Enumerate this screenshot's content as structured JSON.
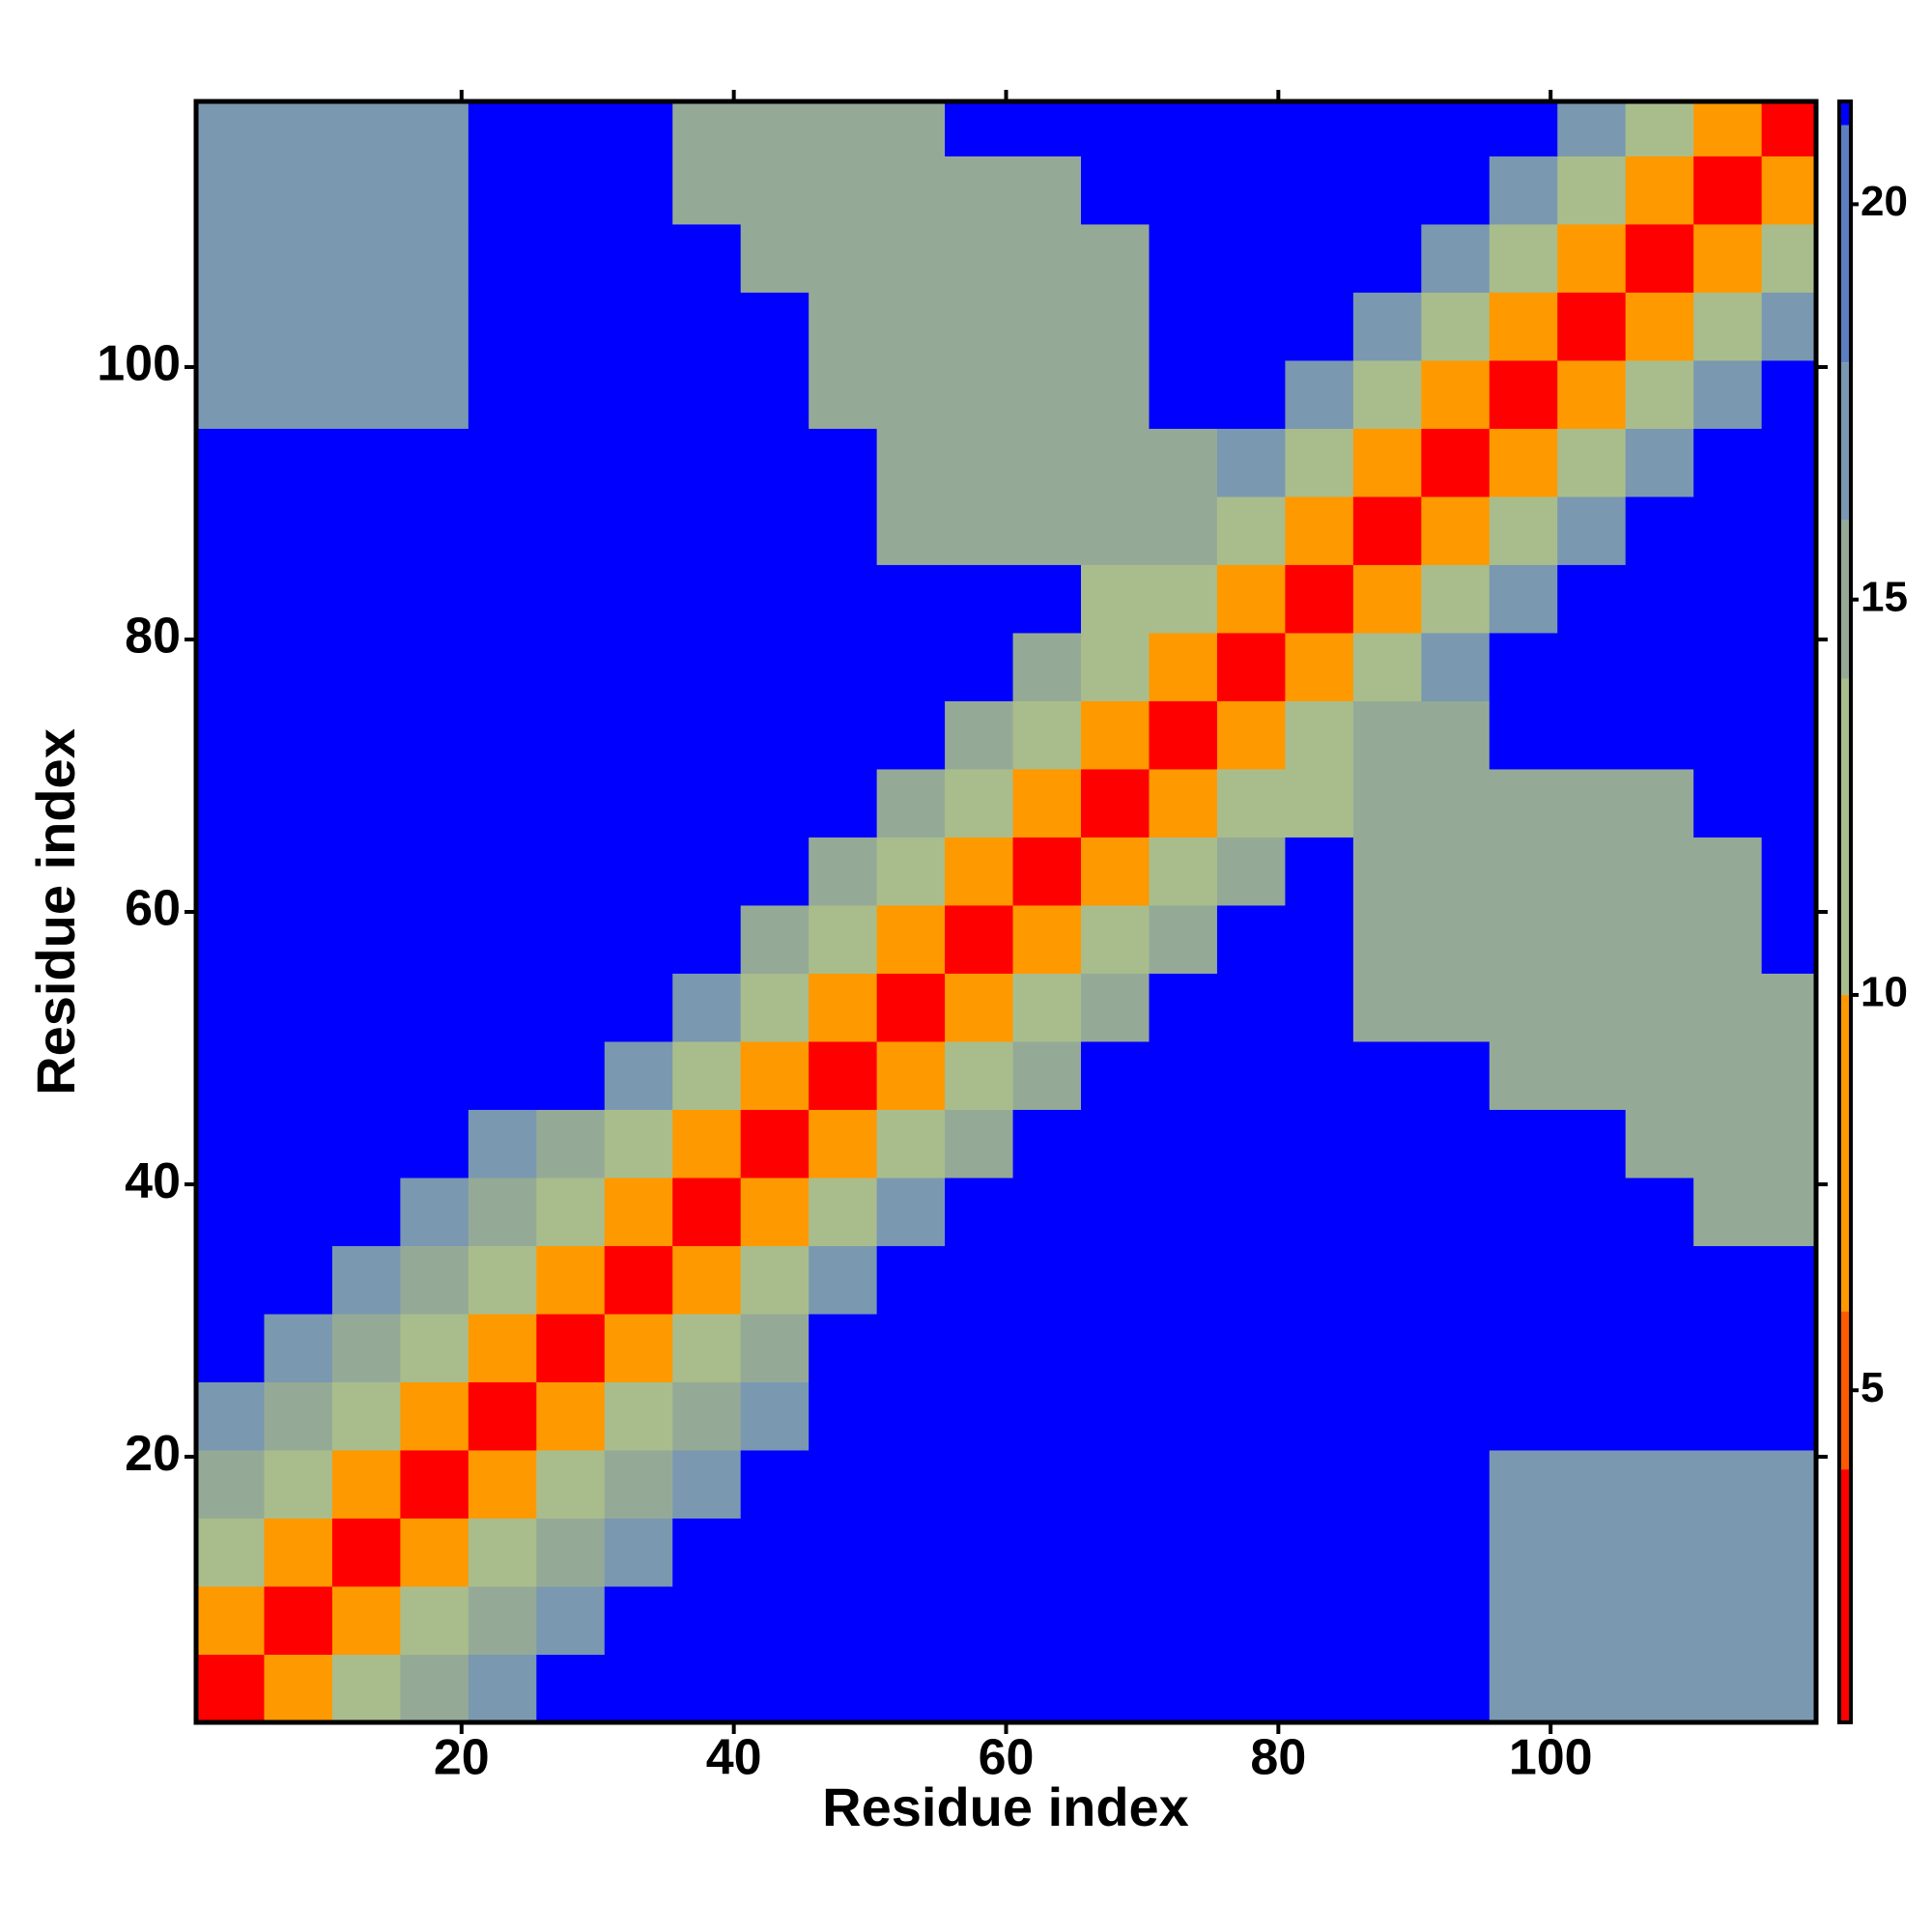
{
  "chart_data": {
    "type": "heatmap",
    "xlabel": "Residue index",
    "ylabel": "Residue index",
    "x": [
      3,
      8,
      13,
      18,
      23,
      28,
      33,
      38,
      43,
      48,
      53,
      58,
      63,
      68,
      73,
      78,
      83,
      88,
      93,
      98,
      103,
      108,
      113,
      118
    ],
    "y": [
      3,
      8,
      13,
      18,
      23,
      28,
      33,
      38,
      43,
      48,
      53,
      58,
      63,
      68,
      73,
      78,
      83,
      88,
      93,
      98,
      103,
      108,
      113,
      118
    ],
    "values": [
      [
        3,
        9,
        13,
        15,
        17,
        21,
        21,
        21,
        21,
        21,
        21,
        21,
        21,
        21,
        21,
        21,
        21,
        21,
        21,
        17,
        17,
        17,
        17,
        17
      ],
      [
        9,
        3,
        9,
        13,
        15,
        17,
        21,
        21,
        21,
        21,
        21,
        21,
        21,
        21,
        21,
        21,
        21,
        21,
        21,
        17,
        17,
        17,
        17,
        17
      ],
      [
        13,
        9,
        3,
        9,
        13,
        15,
        17,
        21,
        21,
        21,
        21,
        21,
        21,
        21,
        21,
        21,
        21,
        21,
        21,
        17,
        17,
        17,
        17,
        17
      ],
      [
        15,
        13,
        9,
        3,
        9,
        13,
        15,
        17,
        21,
        21,
        21,
        21,
        21,
        21,
        21,
        21,
        21,
        21,
        21,
        17,
        17,
        17,
        17,
        17
      ],
      [
        17,
        15,
        13,
        9,
        3,
        9,
        13,
        15,
        17,
        21,
        21,
        21,
        21,
        21,
        21,
        21,
        21,
        21,
        21,
        21,
        21,
        21,
        21,
        21
      ],
      [
        21,
        17,
        15,
        13,
        9,
        3,
        9,
        13,
        15,
        21,
        21,
        21,
        21,
        21,
        21,
        21,
        21,
        21,
        21,
        21,
        21,
        21,
        21,
        21
      ],
      [
        21,
        21,
        17,
        15,
        13,
        9,
        3,
        9,
        13,
        17,
        21,
        21,
        21,
        21,
        21,
        21,
        21,
        21,
        21,
        21,
        21,
        21,
        21,
        21
      ],
      [
        21,
        21,
        21,
        17,
        15,
        13,
        9,
        3,
        9,
        13,
        17,
        21,
        21,
        21,
        21,
        21,
        21,
        21,
        21,
        21,
        21,
        21,
        15,
        15
      ],
      [
        21,
        21,
        21,
        21,
        17,
        15,
        13,
        9,
        3,
        9,
        13,
        15,
        21,
        21,
        21,
        21,
        21,
        21,
        21,
        21,
        21,
        15,
        15,
        15
      ],
      [
        21,
        21,
        21,
        21,
        21,
        21,
        17,
        13,
        9,
        3,
        9,
        13,
        15,
        21,
        21,
        21,
        21,
        21,
        21,
        15,
        15,
        15,
        15,
        15
      ],
      [
        21,
        21,
        21,
        21,
        21,
        21,
        21,
        17,
        13,
        9,
        3,
        9,
        13,
        15,
        21,
        21,
        21,
        15,
        15,
        15,
        15,
        15,
        15,
        15
      ],
      [
        21,
        21,
        21,
        21,
        21,
        21,
        21,
        21,
        15,
        13,
        9,
        3,
        9,
        13,
        15,
        21,
        21,
        15,
        15,
        15,
        15,
        15,
        15,
        21
      ],
      [
        21,
        21,
        21,
        21,
        21,
        21,
        21,
        21,
        21,
        15,
        13,
        9,
        3,
        9,
        13,
        15,
        21,
        15,
        15,
        15,
        15,
        15,
        15,
        21
      ],
      [
        21,
        21,
        21,
        21,
        21,
        21,
        21,
        21,
        21,
        21,
        15,
        13,
        9,
        3,
        9,
        13,
        13,
        15,
        15,
        15,
        15,
        15,
        21,
        21
      ],
      [
        21,
        21,
        21,
        21,
        21,
        21,
        21,
        21,
        21,
        21,
        21,
        15,
        13,
        9,
        3,
        9,
        13,
        15,
        15,
        21,
        21,
        21,
        21,
        21
      ],
      [
        21,
        21,
        21,
        21,
        21,
        21,
        21,
        21,
        21,
        21,
        21,
        21,
        15,
        13,
        9,
        3,
        9,
        13,
        17,
        21,
        21,
        21,
        21,
        21
      ],
      [
        21,
        21,
        21,
        21,
        21,
        21,
        21,
        21,
        21,
        21,
        21,
        21,
        21,
        13,
        13,
        9,
        3,
        9,
        13,
        17,
        21,
        21,
        21,
        21
      ],
      [
        21,
        21,
        21,
        21,
        21,
        21,
        21,
        21,
        21,
        21,
        15,
        15,
        15,
        15,
        15,
        13,
        9,
        3,
        9,
        13,
        17,
        21,
        21,
        21
      ],
      [
        21,
        21,
        21,
        21,
        21,
        21,
        21,
        21,
        21,
        21,
        15,
        15,
        15,
        15,
        15,
        17,
        13,
        9,
        3,
        9,
        13,
        17,
        21,
        21
      ],
      [
        17,
        17,
        17,
        17,
        21,
        21,
        21,
        21,
        21,
        15,
        15,
        15,
        15,
        15,
        21,
        21,
        17,
        13,
        9,
        3,
        9,
        13,
        17,
        21
      ],
      [
        17,
        17,
        17,
        17,
        21,
        21,
        21,
        21,
        21,
        15,
        15,
        15,
        15,
        15,
        21,
        21,
        21,
        17,
        13,
        9,
        3,
        9,
        13,
        17
      ],
      [
        17,
        17,
        17,
        17,
        21,
        21,
        21,
        21,
        15,
        15,
        15,
        15,
        15,
        15,
        21,
        21,
        21,
        21,
        17,
        13,
        9,
        3,
        9,
        13
      ],
      [
        17,
        17,
        17,
        17,
        21,
        21,
        21,
        15,
        15,
        15,
        15,
        15,
        15,
        21,
        21,
        21,
        21,
        21,
        21,
        17,
        13,
        9,
        3,
        9
      ],
      [
        17,
        17,
        17,
        17,
        21,
        21,
        21,
        15,
        15,
        15,
        15,
        21,
        21,
        21,
        21,
        21,
        21,
        21,
        21,
        21,
        17,
        13,
        9,
        3
      ]
    ],
    "xlim": [
      0.5,
      119.5
    ],
    "ylim": [
      0.5,
      119.5
    ],
    "xticks": [
      20,
      40,
      60,
      80,
      100
    ],
    "yticks": [
      20,
      40,
      60,
      80,
      100
    ],
    "colorbar": {
      "lim": [
        0.8,
        21.3
      ],
      "ticks": [
        5,
        10,
        15,
        20
      ]
    },
    "colorscale": [
      {
        "value": 0,
        "color": "#ff0000"
      },
      {
        "value": 4,
        "color": "#ff5a00"
      },
      {
        "value": 6,
        "color": "#ff9900"
      },
      {
        "value": 10,
        "color": "#a9bd8c"
      },
      {
        "value": 14,
        "color": "#95aa96"
      },
      {
        "value": 16,
        "color": "#7a98b0"
      },
      {
        "value": 18,
        "color": "#5c7fc0"
      },
      {
        "value": 21,
        "color": "#0000ff"
      }
    ]
  }
}
